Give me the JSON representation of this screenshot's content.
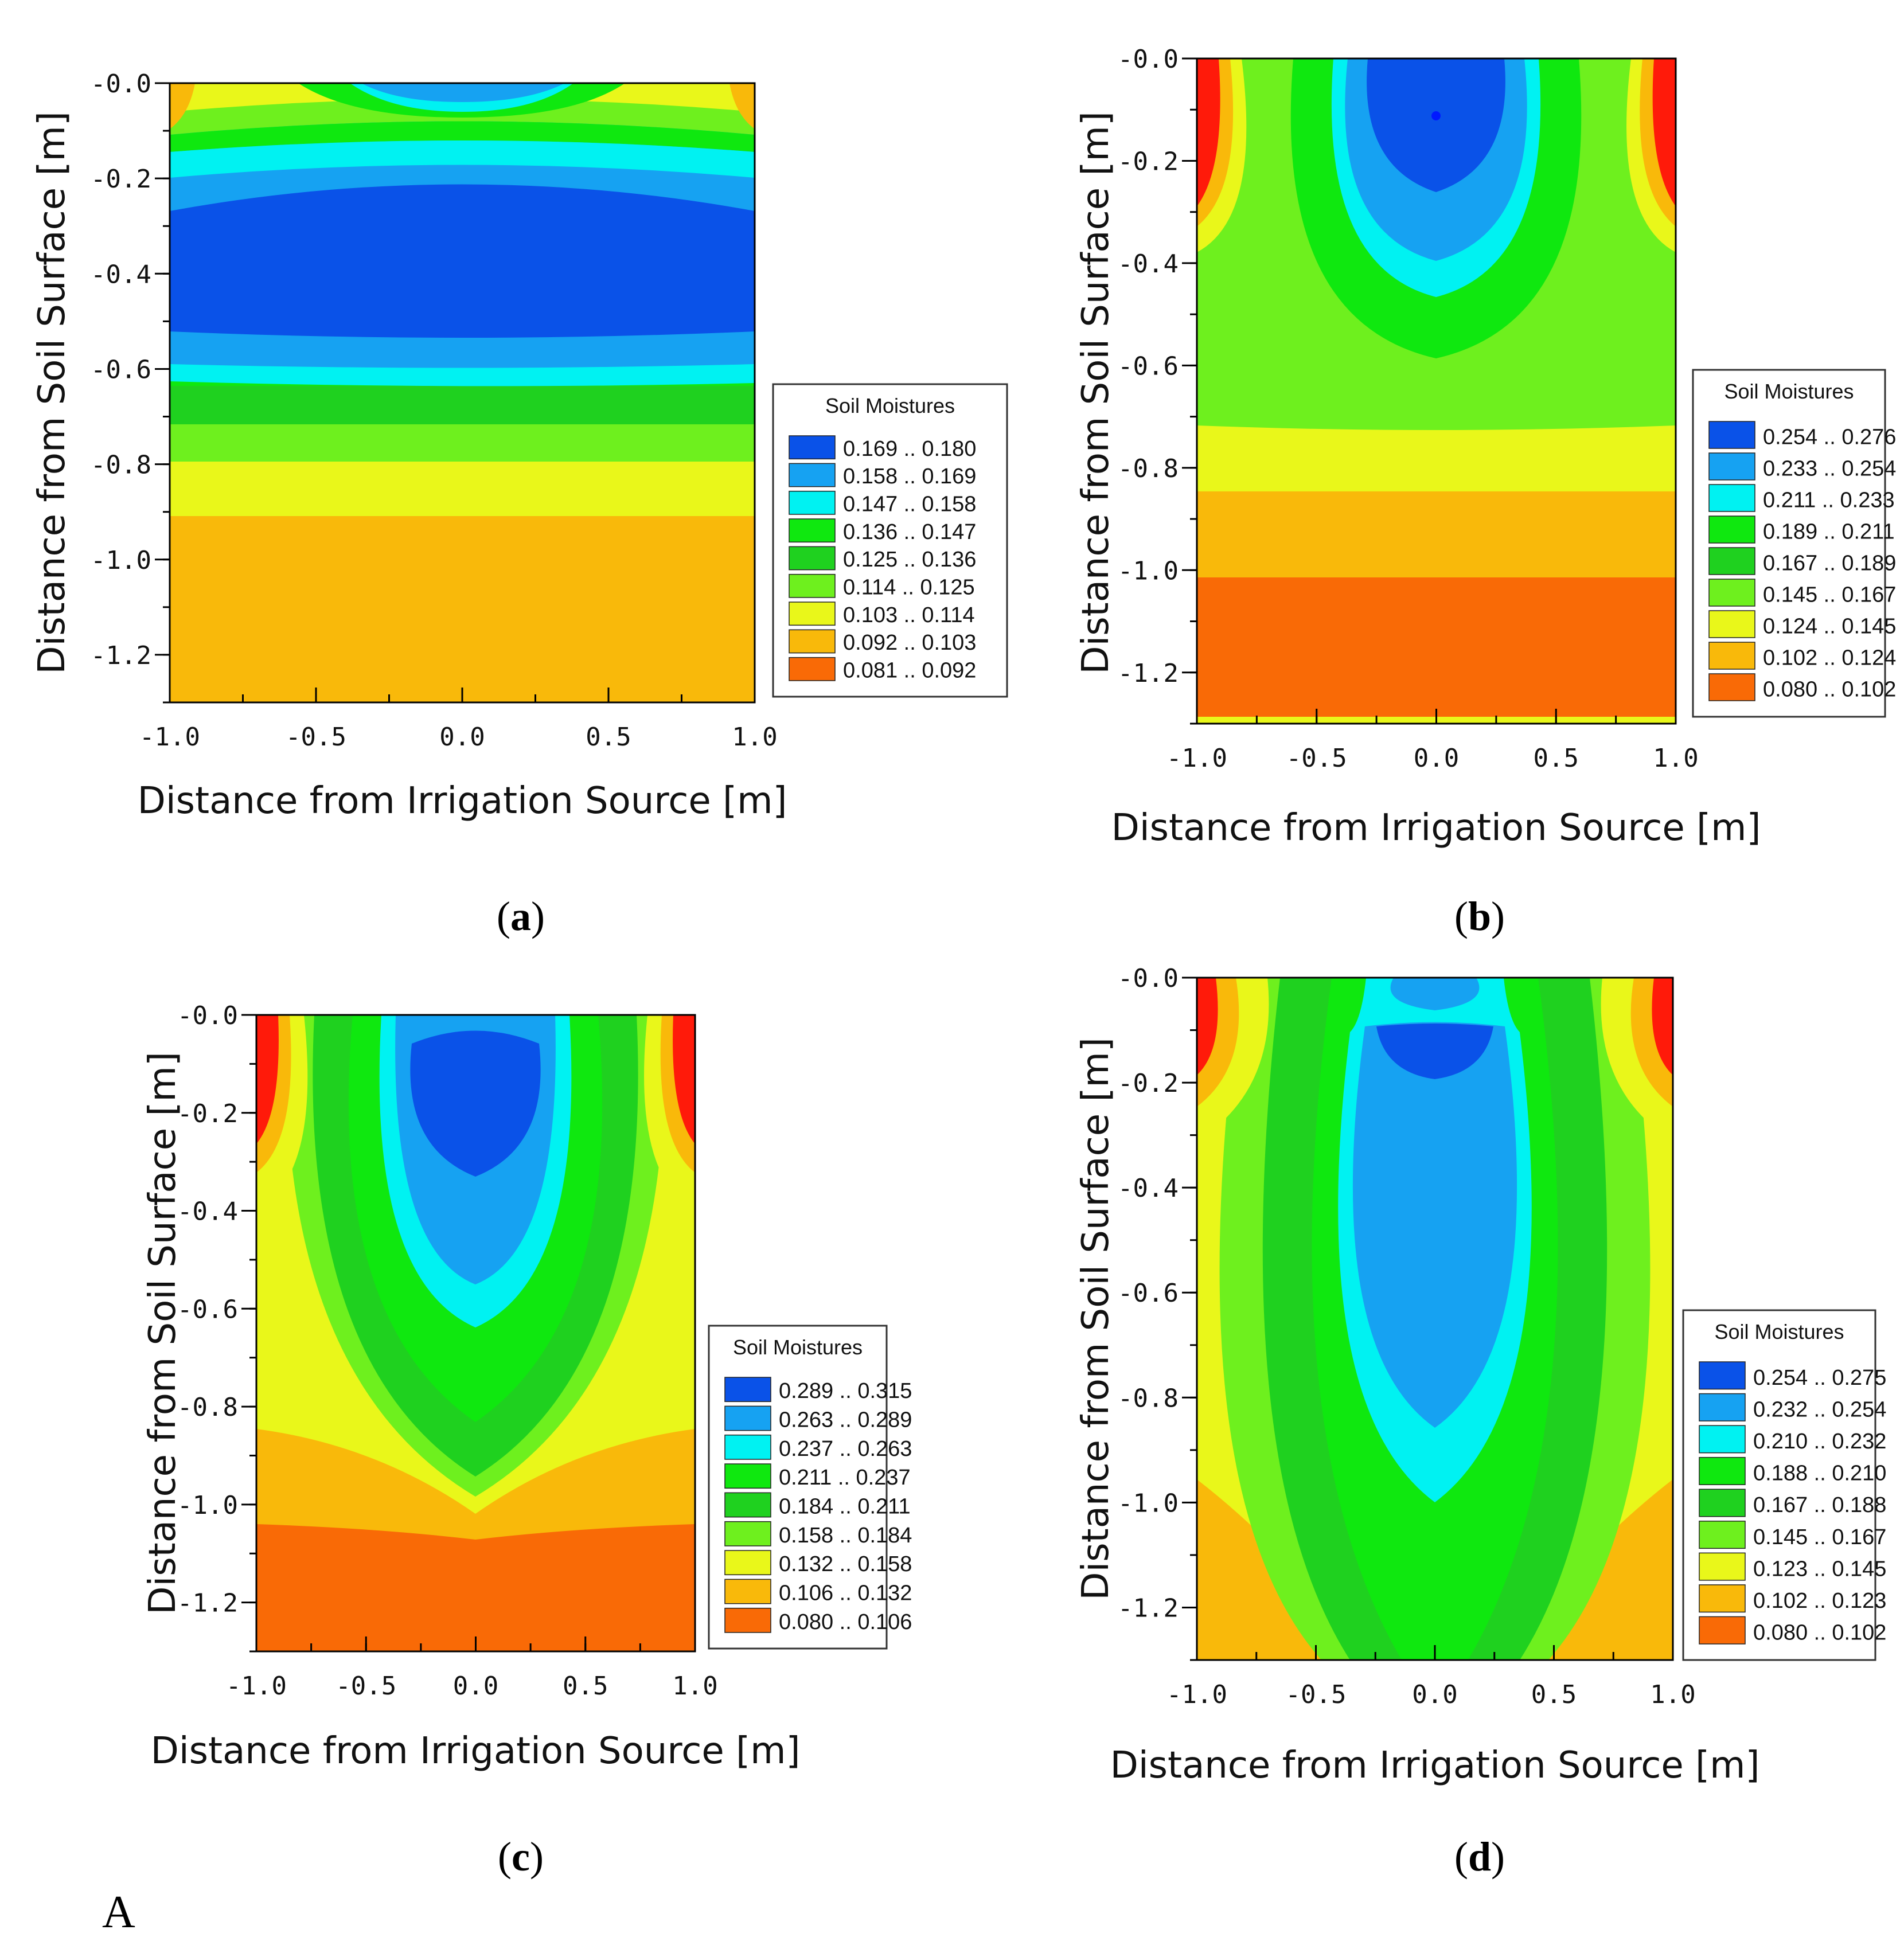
{
  "figure_footer_label": "A",
  "colors": {
    "dark_blue": "#0a52e8",
    "mid_blue": "#16a2f2",
    "cyan": "#00f2f2",
    "green1": "#0fe80f",
    "green2": "#1fd11f",
    "light_green": "#6ef01e",
    "yellow": "#e9f71a",
    "orange": "#f9b90a",
    "dark_orange": "#f96a06",
    "red": "#ff1a0a"
  },
  "chart_data": [
    {
      "type": "heatmap",
      "panel_label": "a",
      "title": "",
      "xlabel": "Distance from Irrigation Source [m]",
      "ylabel": "Distance from Soil Surface [m]",
      "xlim": [
        -1.0,
        1.0
      ],
      "ylim": [
        -1.3,
        0.0
      ],
      "x_ticks": [
        "-1.0",
        "-0.5",
        "0.0",
        "0.5",
        "1.0"
      ],
      "y_ticks": [
        "-0.0",
        "-0.2",
        "-0.4",
        "-0.6",
        "-0.8",
        "-1.0",
        "-1.2"
      ],
      "legend": {
        "title": "Soil Moistures",
        "entries": [
          {
            "label": "0.169 .. 0.180",
            "color": "#0a52e8"
          },
          {
            "label": "0.158 .. 0.169",
            "color": "#16a2f2"
          },
          {
            "label": "0.147 .. 0.158",
            "color": "#00f2f2"
          },
          {
            "label": "0.136 .. 0.147",
            "color": "#0fe80f"
          },
          {
            "label": "0.125 .. 0.136",
            "color": "#1fd11f"
          },
          {
            "label": "0.114 .. 0.125",
            "color": "#6ef01e"
          },
          {
            "label": "0.103 .. 0.114",
            "color": "#e9f71a"
          },
          {
            "label": "0.092 .. 0.103",
            "color": "#f9b90a"
          },
          {
            "label": "0.081 .. 0.092",
            "color": "#f96a06"
          }
        ]
      }
    },
    {
      "type": "heatmap",
      "panel_label": "b",
      "title": "",
      "xlabel": "Distance from Irrigation Source [m]",
      "ylabel": "Distance from Soil Surface [m]",
      "xlim": [
        -1.0,
        1.0
      ],
      "ylim": [
        -1.3,
        0.0
      ],
      "x_ticks": [
        "-1.0",
        "-0.5",
        "0.0",
        "0.5",
        "1.0"
      ],
      "y_ticks": [
        "-0.0",
        "-0.2",
        "-0.4",
        "-0.6",
        "-0.8",
        "-1.0",
        "-1.2"
      ],
      "legend": {
        "title": "Soil Moistures",
        "entries": [
          {
            "label": "0.254 .. 0.276",
            "color": "#0a52e8"
          },
          {
            "label": "0.233 .. 0.254",
            "color": "#16a2f2"
          },
          {
            "label": "0.211 .. 0.233",
            "color": "#00f2f2"
          },
          {
            "label": "0.189 .. 0.211",
            "color": "#0fe80f"
          },
          {
            "label": "0.167 .. 0.189",
            "color": "#1fd11f"
          },
          {
            "label": "0.145 .. 0.167",
            "color": "#6ef01e"
          },
          {
            "label": "0.124 .. 0.145",
            "color": "#e9f71a"
          },
          {
            "label": "0.102 .. 0.124",
            "color": "#f9b90a"
          },
          {
            "label": "0.080 .. 0.102",
            "color": "#f96a06"
          }
        ]
      }
    },
    {
      "type": "heatmap",
      "panel_label": "c",
      "title": "",
      "xlabel": "Distance from Irrigation Source [m]",
      "ylabel": "Distance from Soil Surface [m]",
      "xlim": [
        -1.0,
        1.0
      ],
      "ylim": [
        -1.3,
        0.0
      ],
      "x_ticks": [
        "-1.0",
        "-0.5",
        "0.0",
        "0.5",
        "1.0"
      ],
      "y_ticks": [
        "-0.0",
        "-0.2",
        "-0.4",
        "-0.6",
        "-0.8",
        "-1.0",
        "-1.2"
      ],
      "legend": {
        "title": "Soil Moistures",
        "entries": [
          {
            "label": "0.289 .. 0.315",
            "color": "#0a52e8"
          },
          {
            "label": "0.263 .. 0.289",
            "color": "#16a2f2"
          },
          {
            "label": "0.237 .. 0.263",
            "color": "#00f2f2"
          },
          {
            "label": "0.211 .. 0.237",
            "color": "#0fe80f"
          },
          {
            "label": "0.184 .. 0.211",
            "color": "#1fd11f"
          },
          {
            "label": "0.158 .. 0.184",
            "color": "#6ef01e"
          },
          {
            "label": "0.132 .. 0.158",
            "color": "#e9f71a"
          },
          {
            "label": "0.106 .. 0.132",
            "color": "#f9b90a"
          },
          {
            "label": "0.080 .. 0.106",
            "color": "#f96a06"
          }
        ]
      }
    },
    {
      "type": "heatmap",
      "panel_label": "d",
      "title": "",
      "xlabel": "Distance from Irrigation Source [m]",
      "ylabel": "Distance from Soil Surface [m]",
      "xlim": [
        -1.0,
        1.0
      ],
      "ylim": [
        -1.3,
        0.0
      ],
      "x_ticks": [
        "-1.0",
        "-0.5",
        "0.0",
        "0.5",
        "1.0"
      ],
      "y_ticks": [
        "-0.0",
        "-0.2",
        "-0.4",
        "-0.6",
        "-0.8",
        "-1.0",
        "-1.2"
      ],
      "legend": {
        "title": "Soil Moistures",
        "entries": [
          {
            "label": "0.254 .. 0.275",
            "color": "#0a52e8"
          },
          {
            "label": "0.232 .. 0.254",
            "color": "#16a2f2"
          },
          {
            "label": "0.210 .. 0.232",
            "color": "#00f2f2"
          },
          {
            "label": "0.188 .. 0.210",
            "color": "#0fe80f"
          },
          {
            "label": "0.167 .. 0.188",
            "color": "#1fd11f"
          },
          {
            "label": "0.145 .. 0.167",
            "color": "#6ef01e"
          },
          {
            "label": "0.123 .. 0.145",
            "color": "#e9f71a"
          },
          {
            "label": "0.102 .. 0.123",
            "color": "#f9b90a"
          },
          {
            "label": "0.080 .. 0.102",
            "color": "#f96a06"
          }
        ]
      }
    }
  ]
}
